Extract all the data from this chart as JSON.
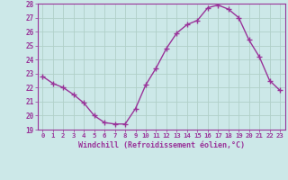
{
  "hours": [
    0,
    1,
    2,
    3,
    4,
    5,
    6,
    7,
    8,
    9,
    10,
    11,
    12,
    13,
    14,
    15,
    16,
    17,
    18,
    19,
    20,
    21,
    22,
    23
  ],
  "values": [
    22.8,
    22.3,
    22.0,
    21.5,
    20.9,
    20.0,
    19.5,
    19.4,
    19.4,
    20.5,
    22.2,
    23.4,
    24.8,
    25.9,
    26.5,
    26.8,
    27.7,
    27.9,
    27.6,
    27.0,
    25.4,
    24.2,
    22.5,
    21.8
  ],
  "ylim": [
    19,
    28
  ],
  "yticks": [
    19,
    20,
    21,
    22,
    23,
    24,
    25,
    26,
    27,
    28
  ],
  "line_color": "#993399",
  "marker_color": "#993399",
  "bg_color": "#cce8e8",
  "grid_color": "#b0d0c8",
  "xlabel": "Windchill (Refroidissement éolien,°C)",
  "xlabel_color": "#993399",
  "tick_color": "#993399",
  "marker": "+",
  "marker_size": 4.0,
  "line_width": 1.0
}
